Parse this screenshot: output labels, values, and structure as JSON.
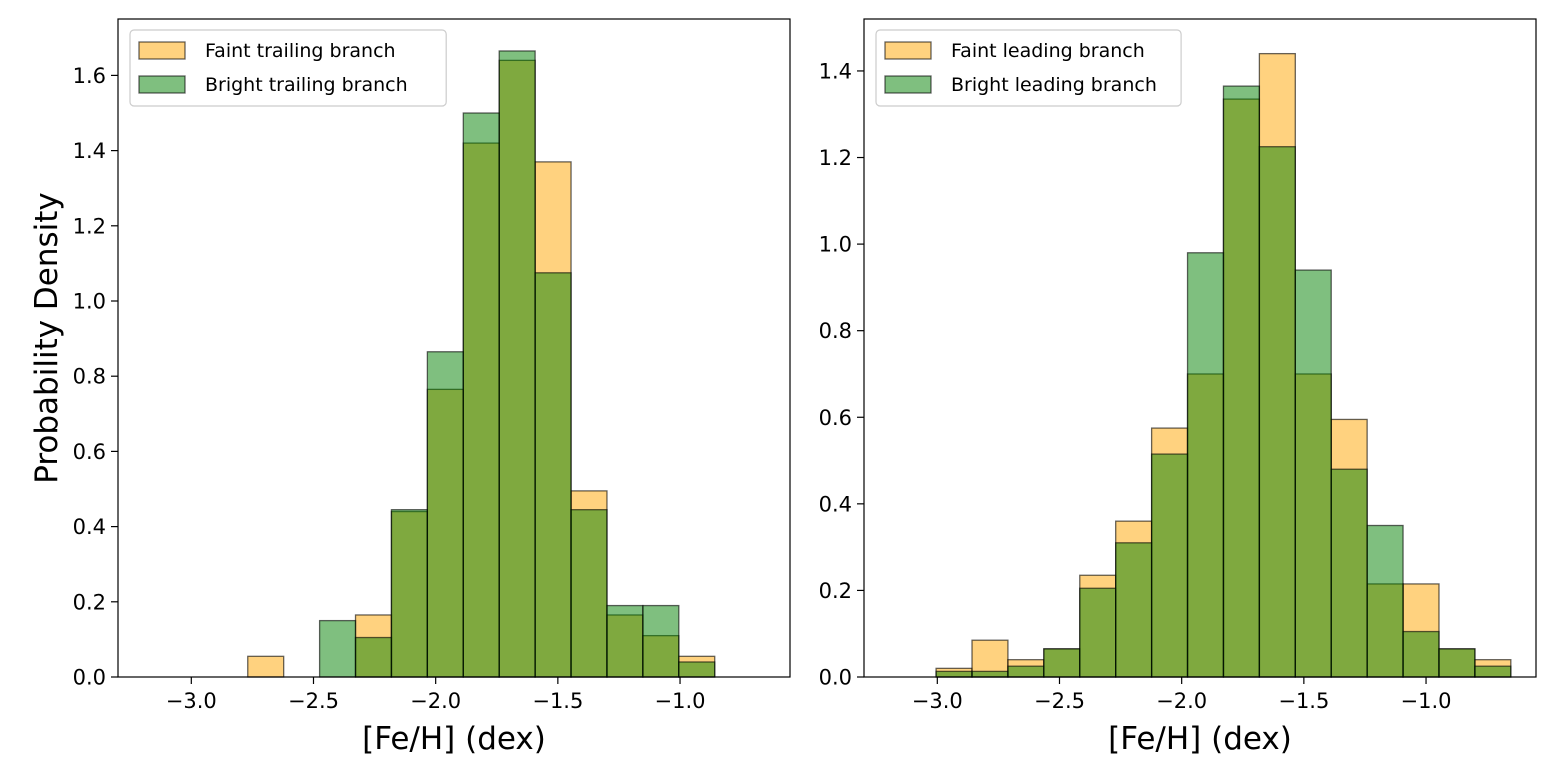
{
  "chart_data": [
    {
      "type": "bar",
      "xlabel": "[Fe/H] (dex)",
      "ylabel": "Probability Density",
      "xlim": [
        -3.3,
        -0.55
      ],
      "ylim": [
        0.0,
        1.75
      ],
      "xticks": [
        -3.0,
        -2.5,
        -2.0,
        -1.5,
        -1.0
      ],
      "xtick_labels": [
        "−3.0",
        "−2.5",
        "−2.0",
        "−1.5",
        "−1.0"
      ],
      "yticks": [
        0.0,
        0.2,
        0.4,
        0.6,
        0.8,
        1.0,
        1.2,
        1.4,
        1.6
      ],
      "ytick_labels": [
        "0.0",
        "0.2",
        "0.4",
        "0.6",
        "0.8",
        "1.0",
        "1.2",
        "1.4",
        "1.6"
      ],
      "legend_position": "top-left",
      "bin_width": 0.147,
      "series": [
        {
          "name": "Faint trailing branch",
          "color": "#ffa500",
          "bin_edges": [
            -3.21,
            -3.063,
            -2.916,
            -2.769,
            -2.622,
            -2.475,
            -2.328,
            -2.181,
            -2.034,
            -1.887,
            -1.74,
            -1.593,
            -1.446,
            -1.299,
            -1.152,
            -1.005,
            -0.858,
            -0.711
          ],
          "values": [
            0.0,
            0.0,
            0.0,
            0.055,
            0.0,
            0.0,
            0.165,
            0.44,
            0.765,
            1.42,
            1.64,
            1.37,
            0.495,
            0.165,
            0.11,
            0.055,
            0.0
          ]
        },
        {
          "name": "Bright trailing branch",
          "color": "#008000",
          "bin_edges": [
            -3.21,
            -3.063,
            -2.916,
            -2.769,
            -2.622,
            -2.475,
            -2.328,
            -2.181,
            -2.034,
            -1.887,
            -1.74,
            -1.593,
            -1.446,
            -1.299,
            -1.152,
            -1.005,
            -0.858,
            -0.711
          ],
          "values": [
            0.0,
            0.0,
            0.0,
            0.0,
            0.0,
            0.15,
            0.105,
            0.445,
            0.865,
            1.5,
            1.665,
            1.075,
            0.445,
            0.19,
            0.19,
            0.04,
            0.0
          ]
        }
      ]
    },
    {
      "type": "bar",
      "xlabel": "[Fe/H] (dex)",
      "ylabel": "",
      "xlim": [
        -3.3,
        -0.55
      ],
      "ylim": [
        0.0,
        1.52
      ],
      "xticks": [
        -3.0,
        -2.5,
        -2.0,
        -1.5,
        -1.0
      ],
      "xtick_labels": [
        "−3.0",
        "−2.5",
        "−2.0",
        "−1.5",
        "−1.0"
      ],
      "yticks": [
        0.0,
        0.2,
        0.4,
        0.6,
        0.8,
        1.0,
        1.2,
        1.4
      ],
      "ytick_labels": [
        "0.0",
        "0.2",
        "0.4",
        "0.6",
        "0.8",
        "1.0",
        "1.2",
        "1.4"
      ],
      "legend_position": "top-left",
      "bin_width": 0.147,
      "series": [
        {
          "name": "Faint leading branch",
          "color": "#ffa500",
          "bin_edges": [
            -3.21,
            -3.005,
            -2.858,
            -2.711,
            -2.564,
            -2.417,
            -2.27,
            -2.123,
            -1.976,
            -1.829,
            -1.682,
            -1.535,
            -1.388,
            -1.241,
            -1.094,
            -0.947,
            -0.8,
            -0.653
          ],
          "values": [
            0.0,
            0.02,
            0.085,
            0.04,
            0.065,
            0.235,
            0.36,
            0.575,
            0.7,
            1.335,
            1.44,
            0.7,
            0.595,
            0.215,
            0.215,
            0.065,
            0.04
          ]
        },
        {
          "name": "Bright leading branch",
          "color": "#008000",
          "bin_edges": [
            -3.21,
            -3.005,
            -2.858,
            -2.711,
            -2.564,
            -2.417,
            -2.27,
            -2.123,
            -1.976,
            -1.829,
            -1.682,
            -1.535,
            -1.388,
            -1.241,
            -1.094,
            -0.947,
            -0.8,
            -0.653
          ],
          "values": [
            0.0,
            0.013,
            0.013,
            0.025,
            0.065,
            0.205,
            0.31,
            0.515,
            0.98,
            1.365,
            1.225,
            0.94,
            0.48,
            0.35,
            0.105,
            0.065,
            0.025
          ]
        }
      ]
    }
  ]
}
